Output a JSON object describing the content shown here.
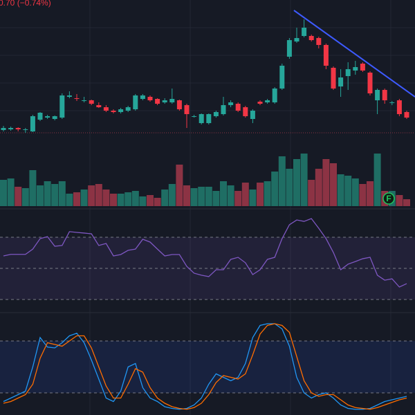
{
  "chart_data": [
    {
      "type": "candlestick",
      "title": "0.70 (−0.74%)",
      "up_color": "#26a69a",
      "down_color": "#f23645",
      "ylim": [
        0,
        200
      ],
      "open": [
        12,
        13,
        15,
        12,
        10,
        27,
        30,
        28,
        30,
        60,
        58,
        55,
        55,
        48,
        45,
        40,
        38,
        40,
        42,
        57,
        60,
        57,
        52,
        52,
        55,
        48,
        32,
        22,
        22,
        32,
        35,
        48,
        50,
        45,
        28,
        53,
        52,
        52,
        72,
        118,
        140,
        148,
        148,
        145,
        135,
        102,
        75,
        90,
        98,
        108,
        95,
        55,
        70,
        52,
        55,
        38
      ],
      "high": [
        18,
        17,
        16,
        15,
        34,
        38,
        34,
        33,
        65,
        68,
        64,
        60,
        56,
        52,
        48,
        42,
        44,
        47,
        64,
        64,
        62,
        58,
        58,
        72,
        56,
        50,
        34,
        36,
        36,
        40,
        60,
        55,
        52,
        47,
        42,
        55,
        57,
        74,
        108,
        145,
        160,
        172,
        150,
        147,
        137,
        104,
        100,
        110,
        112,
        110,
        97,
        72,
        72,
        54,
        57,
        40
      ],
      "low": [
        10,
        11,
        10,
        8,
        9,
        25,
        28,
        26,
        28,
        58,
        54,
        52,
        48,
        44,
        38,
        36,
        36,
        38,
        40,
        55,
        53,
        48,
        50,
        50,
        40,
        15,
        30,
        20,
        20,
        30,
        33,
        45,
        38,
        30,
        22,
        48,
        50,
        50,
        70,
        115,
        138,
        146,
        140,
        130,
        100,
        70,
        60,
        70,
        92,
        96,
        62,
        35,
        50,
        48,
        32,
        28
      ],
      "close": [
        15,
        15,
        13,
        13,
        32,
        37,
        32,
        32,
        62,
        62,
        57,
        55,
        50,
        45,
        40,
        38,
        42,
        45,
        62,
        62,
        55,
        50,
        55,
        57,
        42,
        35,
        32,
        35,
        35,
        38,
        48,
        52,
        40,
        32,
        40,
        50,
        55,
        72,
        105,
        142,
        145,
        160,
        142,
        135,
        105,
        72,
        88,
        100,
        103,
        98,
        65,
        70,
        55,
        52,
        35,
        30
      ]
    },
    {
      "type": "volume",
      "annotation": "F",
      "up_color": "#1f6e64",
      "down_color": "#8c3344",
      "ylim": [
        0,
        80
      ],
      "values": [
        38,
        40,
        28,
        26,
        52,
        30,
        36,
        32,
        36,
        18,
        20,
        24,
        30,
        32,
        24,
        18,
        18,
        20,
        22,
        14,
        16,
        12,
        24,
        32,
        60,
        30,
        26,
        28,
        28,
        22,
        36,
        30,
        22,
        34,
        24,
        34,
        36,
        50,
        72,
        54,
        68,
        76,
        38,
        54,
        68,
        62,
        46,
        44,
        40,
        32,
        36,
        76,
        22,
        22,
        16,
        10
      ]
    },
    {
      "type": "line",
      "color": "#7e57c2",
      "band_color": "#7e57c2",
      "levels": [
        70,
        50,
        30
      ],
      "ylim": [
        0,
        100
      ],
      "values": [
        58,
        59,
        59,
        59,
        62.4,
        69.1,
        70.4,
        64.2,
        64.7,
        73.6,
        73.1,
        72.7,
        72.2,
        64.7,
        66,
        58,
        58.9,
        61.6,
        62.4,
        68.7,
        66.9,
        62.4,
        58,
        58.9,
        58.9,
        51.3,
        46.9,
        45.6,
        44.7,
        49.1,
        49.1,
        55.8,
        57.1,
        53.6,
        46,
        49.1,
        55.8,
        57.1,
        69.1,
        78,
        81.1,
        80.2,
        82,
        75.8,
        69.1,
        60.2,
        49.1,
        52.7,
        54.4,
        56.2,
        57.1,
        45.6,
        42.4,
        43.3,
        38,
        40.2
      ]
    },
    {
      "type": "line",
      "band_color": "#2962ff",
      "levels": [
        80,
        20
      ],
      "ylim": [
        0,
        100
      ],
      "series": [
        {
          "color": "#2196f3",
          "values": [
            10,
            14,
            18,
            22,
            50,
            84,
            73,
            72,
            78,
            86,
            89,
            78,
            58,
            36,
            14,
            10,
            22,
            50,
            54,
            26,
            14,
            10,
            4,
            2,
            1,
            2,
            6,
            14,
            30,
            42,
            38,
            34,
            38,
            54,
            84,
            98,
            100,
            100,
            94,
            74,
            38,
            20,
            14,
            18,
            20,
            14,
            6,
            2,
            1,
            1,
            2,
            6,
            10,
            12,
            14,
            16
          ]
        },
        {
          "color": "#ff6d00",
          "values": [
            8,
            10,
            14,
            18,
            30,
            60,
            78,
            76,
            74,
            80,
            86,
            86,
            72,
            50,
            28,
            14,
            14,
            30,
            48,
            44,
            26,
            14,
            8,
            4,
            2,
            1,
            3,
            8,
            18,
            32,
            40,
            38,
            36,
            42,
            64,
            88,
            98,
            100,
            98,
            90,
            62,
            34,
            20,
            16,
            18,
            18,
            12,
            6,
            3,
            2,
            1,
            3,
            6,
            9,
            12,
            14
          ]
        }
      ]
    }
  ]
}
